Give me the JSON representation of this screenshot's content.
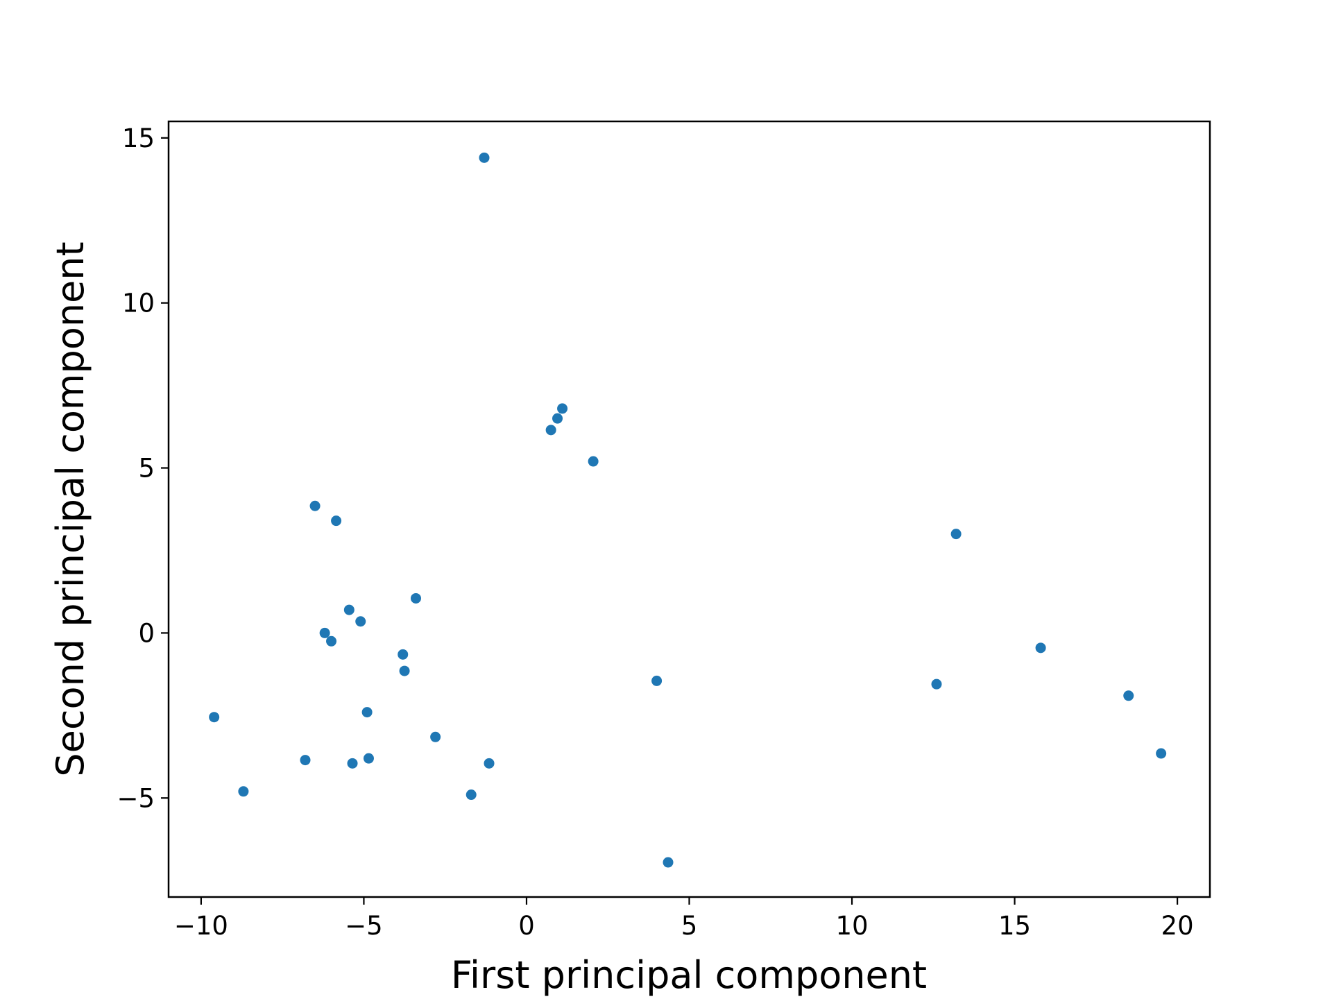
{
  "chart_data": {
    "type": "scatter",
    "title": "",
    "xlabel": "First principal component",
    "ylabel": "Second principal component",
    "xlim": [
      -11.0,
      21.0
    ],
    "ylim": [
      -8.0,
      15.5
    ],
    "xticks": [
      -10,
      -5,
      0,
      5,
      10,
      15,
      20
    ],
    "yticks": [
      -5,
      0,
      5,
      10,
      15
    ],
    "xtick_labels": [
      "−10",
      "−5",
      "0",
      "5",
      "10",
      "15",
      "20"
    ],
    "ytick_labels": [
      "−5",
      "0",
      "5",
      "10",
      "15"
    ],
    "grid": false,
    "legend": "none",
    "color": "#1f77b4",
    "series": [
      {
        "points": [
          {
            "x": -1.3,
            "y": 14.4
          },
          {
            "x": 1.1,
            "y": 6.8
          },
          {
            "x": 0.95,
            "y": 6.5
          },
          {
            "x": 0.75,
            "y": 6.15
          },
          {
            "x": 2.05,
            "y": 5.2
          },
          {
            "x": -6.5,
            "y": 3.85
          },
          {
            "x": -5.85,
            "y": 3.4
          },
          {
            "x": 13.2,
            "y": 3.0
          },
          {
            "x": -3.4,
            "y": 1.05
          },
          {
            "x": -5.45,
            "y": 0.7
          },
          {
            "x": -5.1,
            "y": 0.35
          },
          {
            "x": -6.2,
            "y": 0.0
          },
          {
            "x": -6.0,
            "y": -0.25
          },
          {
            "x": -3.8,
            "y": -0.65
          },
          {
            "x": -3.75,
            "y": -1.15
          },
          {
            "x": 15.8,
            "y": -0.45
          },
          {
            "x": 4.0,
            "y": -1.45
          },
          {
            "x": 12.6,
            "y": -1.55
          },
          {
            "x": 18.5,
            "y": -1.9
          },
          {
            "x": -9.6,
            "y": -2.55
          },
          {
            "x": -4.9,
            "y": -2.4
          },
          {
            "x": -2.8,
            "y": -3.15
          },
          {
            "x": 19.5,
            "y": -3.65
          },
          {
            "x": -6.8,
            "y": -3.85
          },
          {
            "x": -4.85,
            "y": -3.8
          },
          {
            "x": -5.35,
            "y": -3.95
          },
          {
            "x": -1.15,
            "y": -3.95
          },
          {
            "x": -8.7,
            "y": -4.8
          },
          {
            "x": -1.7,
            "y": -4.9
          },
          {
            "x": 4.35,
            "y": -6.95
          }
        ]
      }
    ]
  }
}
